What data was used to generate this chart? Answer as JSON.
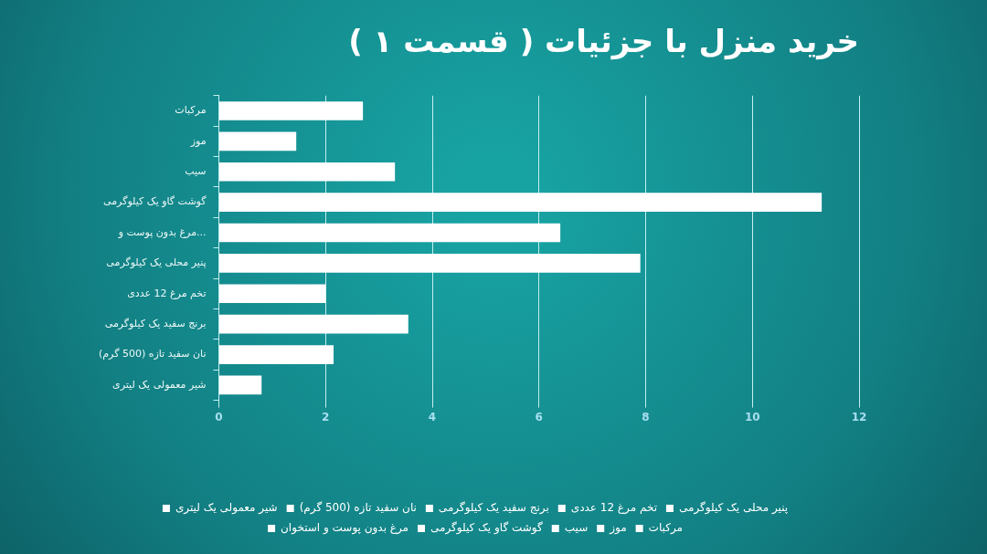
{
  "chart_data": {
    "type": "bar",
    "orientation": "horizontal",
    "title": "خرید منزل با جزئیات ( قسمت ۱ )",
    "categories": [
      "مرکبات",
      "موز",
      "سیب",
      "گوشت گاو یک کیلوگرمی",
      "مرغ بدون پوست و...",
      "پنیر محلی یک کیلوگرمی",
      "تخم مرغ 12 عددی",
      "برنج سفید یک کیلوگرمی",
      "نان سفید تازه (500 گرم)",
      "شیر معمولی یک لیتری"
    ],
    "series": [
      {
        "name": "شیر معمولی یک لیتری",
        "color": "#ffffff",
        "values": [
          null,
          null,
          null,
          null,
          null,
          null,
          null,
          null,
          null,
          0.8
        ]
      },
      {
        "name": "نان سفید تازه (500 گرم)",
        "color": "#ffffff",
        "values": [
          null,
          null,
          null,
          null,
          null,
          null,
          null,
          null,
          2.15,
          null
        ]
      },
      {
        "name": "برنج سفید یک کیلوگرمی",
        "color": "#ffffff",
        "values": [
          null,
          null,
          null,
          null,
          null,
          null,
          null,
          3.55,
          null,
          null
        ]
      },
      {
        "name": "تخم مرغ 12 عددی",
        "color": "#ffffff",
        "values": [
          null,
          null,
          null,
          null,
          null,
          null,
          2.0,
          null,
          null,
          null
        ]
      },
      {
        "name": "پنیر محلی یک کیلوگرمی",
        "color": "#ffffff",
        "values": [
          null,
          null,
          null,
          null,
          null,
          7.9,
          null,
          null,
          null,
          null
        ]
      },
      {
        "name": "مرغ بدون پوست و استخوان",
        "color": "#ffffff",
        "values": [
          null,
          null,
          null,
          null,
          6.4,
          null,
          null,
          null,
          null,
          null
        ]
      },
      {
        "name": "گوشت گاو یک کیلوگرمی",
        "color": "#ffffff",
        "values": [
          null,
          null,
          null,
          11.3,
          null,
          null,
          null,
          null,
          null,
          null
        ]
      },
      {
        "name": "سیب",
        "color": "#ffffff",
        "values": [
          null,
          null,
          3.3,
          null,
          null,
          null,
          null,
          null,
          null,
          null
        ]
      },
      {
        "name": "موز",
        "color": "#ffffff",
        "values": [
          null,
          1.45,
          null,
          null,
          null,
          null,
          null,
          null,
          null,
          null
        ]
      },
      {
        "name": "مرکبات",
        "color": "#ffffff",
        "values": [
          2.7,
          null,
          null,
          null,
          null,
          null,
          null,
          null,
          null,
          null
        ]
      }
    ],
    "xlim": [
      0,
      12
    ],
    "xticks": [
      0,
      2,
      4,
      6,
      8,
      10,
      12
    ],
    "grid": "x",
    "legend": "bottom"
  }
}
